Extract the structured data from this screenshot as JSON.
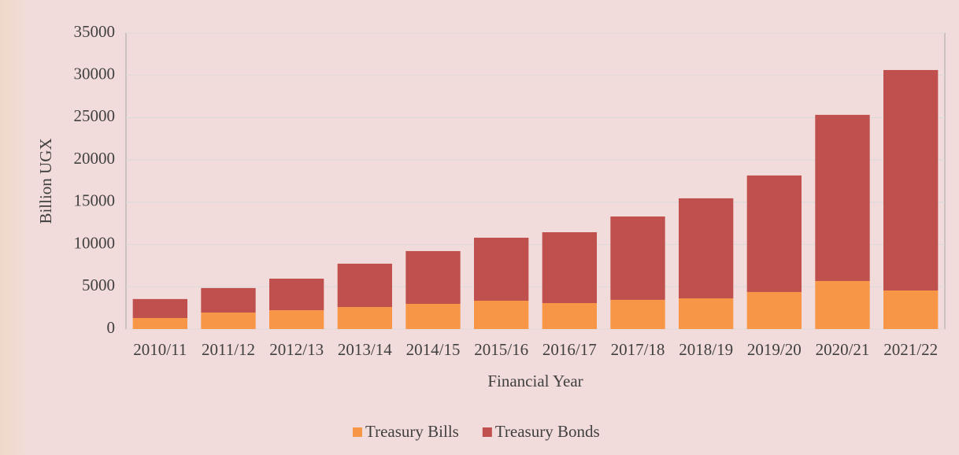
{
  "chart_data": {
    "type": "stacked_bar",
    "x_label": "Financial Year",
    "y_label": "Billion UGX",
    "categories": [
      "2010/11",
      "2011/12",
      "2012/13",
      "2013/14",
      "2014/15",
      "2015/16",
      "2016/17",
      "2017/18",
      "2018/19",
      "2019/20",
      "2020/21",
      "2021/22"
    ],
    "series": [
      {
        "name": "Treasury Bills",
        "color": "#f79646",
        "values": [
          1300,
          1950,
          2230,
          2600,
          2980,
          3350,
          3070,
          3450,
          3630,
          4380,
          5680,
          4560
        ]
      },
      {
        "name": "Treasury Bonds",
        "color": "#c0504d",
        "values": [
          2250,
          2900,
          3730,
          5130,
          6240,
          7450,
          8380,
          9860,
          11830,
          13780,
          19650,
          26070
        ]
      }
    ],
    "ylim": [
      0,
      35000
    ],
    "yticks": [
      0,
      5000,
      10000,
      15000,
      20000,
      25000,
      30000,
      35000
    ],
    "grid": true,
    "legend": "bottom"
  }
}
